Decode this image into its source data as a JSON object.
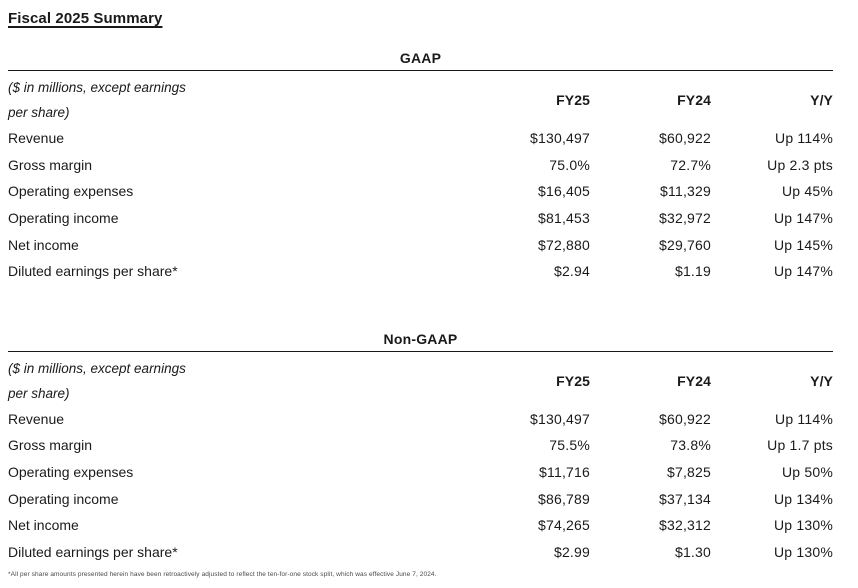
{
  "page": {
    "title": "Fiscal 2025 Summary",
    "footnote": "*All per share amounts presented herein have been retroactively adjusted to reflect the ten-for-one stock split, which was effective June 7, 2024."
  },
  "colors": {
    "text": "#1a1a1a",
    "rule": "#1a1a1a",
    "footnote_text": "#4a4a4a",
    "background": "#ffffff"
  },
  "tables": [
    {
      "section_title": "GAAP",
      "unit_note": [
        "($ in millions, except earnings",
        "per share)"
      ],
      "columns": [
        "FY25",
        "FY24",
        "Y/Y"
      ],
      "rows": [
        {
          "label": "Revenue",
          "fy25": "$130,497",
          "fy24": "$60,922",
          "yy": "Up 114%"
        },
        {
          "label": "Gross margin",
          "fy25": "75.0%",
          "fy24": "72.7%",
          "yy": "Up 2.3 pts"
        },
        {
          "label": "Operating expenses",
          "fy25": "$16,405",
          "fy24": "$11,329",
          "yy": "Up 45%"
        },
        {
          "label": "Operating income",
          "fy25": "$81,453",
          "fy24": "$32,972",
          "yy": "Up 147%"
        },
        {
          "label": "Net income",
          "fy25": "$72,880",
          "fy24": "$29,760",
          "yy": "Up 145%"
        },
        {
          "label": "Diluted earnings per share*",
          "fy25": "$2.94",
          "fy24": "$1.19",
          "yy": "Up 147%"
        }
      ]
    },
    {
      "section_title": "Non-GAAP",
      "unit_note": [
        "($ in millions, except earnings",
        "per share)"
      ],
      "columns": [
        "FY25",
        "FY24",
        "Y/Y"
      ],
      "rows": [
        {
          "label": "Revenue",
          "fy25": "$130,497",
          "fy24": "$60,922",
          "yy": "Up 114%"
        },
        {
          "label": "Gross margin",
          "fy25": "75.5%",
          "fy24": "73.8%",
          "yy": "Up 1.7 pts"
        },
        {
          "label": "Operating expenses",
          "fy25": "$11,716",
          "fy24": "$7,825",
          "yy": "Up 50%"
        },
        {
          "label": "Operating income",
          "fy25": "$86,789",
          "fy24": "$37,134",
          "yy": "Up 134%"
        },
        {
          "label": "Net income",
          "fy25": "$74,265",
          "fy24": "$32,312",
          "yy": "Up 130%"
        },
        {
          "label": "Diluted earnings per share*",
          "fy25": "$2.99",
          "fy24": "$1.30",
          "yy": "Up 130%"
        }
      ]
    }
  ]
}
